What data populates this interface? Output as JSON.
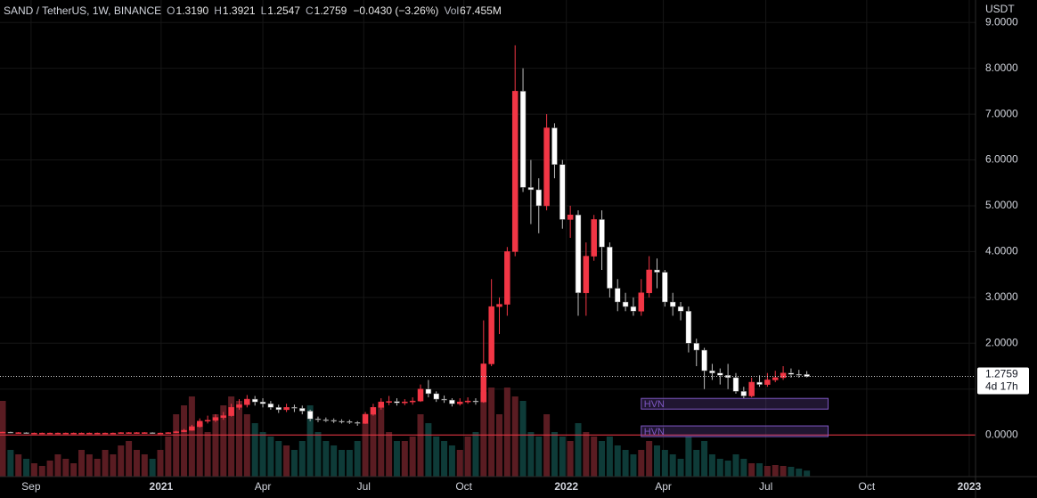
{
  "chart_data": {
    "type": "candlestick",
    "title": "SAND / TetherUS, 1W, BINANCE",
    "legend": [
      {
        "label": "O",
        "value": "1.3190"
      },
      {
        "label": "H",
        "value": "1.3921"
      },
      {
        "label": "L",
        "value": "1.2547"
      },
      {
        "label": "C",
        "value": "1.2759"
      }
    ],
    "change": "−0.0430 (−3.26%)",
    "volume_label": "Vol",
    "volume_value": "67.455M",
    "unit": "USDT",
    "countdown": "4d 17h",
    "up_color": "#f23645",
    "down_color": "#ffffff",
    "volume_up_color": "#5a1c22",
    "volume_down_color": "#0e3b38",
    "open": [
      0.06,
      0.06,
      0.05,
      0.05,
      0.04,
      0.04,
      0.04,
      0.04,
      0.04,
      0.04,
      0.04,
      0.04,
      0.04,
      0.04,
      0.04,
      0.04,
      0.05,
      0.05,
      0.05,
      0.05,
      0.04,
      0.04,
      0.05,
      0.07,
      0.1,
      0.18,
      0.3,
      0.32,
      0.38,
      0.42,
      0.6,
      0.66,
      0.78,
      0.72,
      0.68,
      0.6,
      0.55,
      0.6,
      0.58,
      0.52,
      0.35,
      0.33,
      0.32,
      0.3,
      0.29,
      0.27,
      0.25,
      0.45,
      0.6,
      0.72,
      0.73,
      0.7,
      0.72,
      0.74,
      1.0,
      0.9,
      0.78,
      0.76,
      0.68,
      0.72,
      0.74,
      0.72,
      1.55,
      2.8,
      2.85,
      4.0,
      7.5,
      5.4,
      5.35,
      5.0,
      6.7,
      5.9,
      4.7,
      4.8,
      3.1,
      3.9,
      4.7,
      4.1,
      3.2,
      2.9,
      2.8,
      2.7,
      3.1,
      3.6,
      3.55,
      2.9,
      2.8,
      2.7,
      2.0,
      1.85,
      1.4,
      1.35,
      1.3,
      1.25,
      0.95,
      0.85,
      1.15,
      1.1,
      1.2,
      1.25,
      1.35,
      1.32,
      1.319
    ],
    "high": [
      0.07,
      0.07,
      0.06,
      0.06,
      0.05,
      0.05,
      0.05,
      0.05,
      0.05,
      0.05,
      0.05,
      0.05,
      0.05,
      0.05,
      0.05,
      0.06,
      0.06,
      0.06,
      0.06,
      0.06,
      0.05,
      0.06,
      0.09,
      0.13,
      0.22,
      0.36,
      0.42,
      0.45,
      0.5,
      0.68,
      0.78,
      0.87,
      0.85,
      0.8,
      0.74,
      0.66,
      0.68,
      0.66,
      0.64,
      0.55,
      0.4,
      0.38,
      0.36,
      0.34,
      0.33,
      0.3,
      0.5,
      0.68,
      0.8,
      0.85,
      0.8,
      0.78,
      0.82,
      1.1,
      1.2,
      0.95,
      0.86,
      0.8,
      0.8,
      0.82,
      0.8,
      2.5,
      3.4,
      3.0,
      4.1,
      8.5,
      8.0,
      6.0,
      5.6,
      7.0,
      6.8,
      6.0,
      5.0,
      4.9,
      4.2,
      4.8,
      4.9,
      4.2,
      3.4,
      3.1,
      3.0,
      3.4,
      3.9,
      3.85,
      3.6,
      3.1,
      2.9,
      2.8,
      2.1,
      1.9,
      1.55,
      1.45,
      1.55,
      1.35,
      1.05,
      1.25,
      1.3,
      1.35,
      1.4,
      1.5,
      1.45,
      1.42,
      1.3921
    ],
    "low": [
      0.05,
      0.04,
      0.04,
      0.03,
      0.03,
      0.03,
      0.03,
      0.03,
      0.03,
      0.03,
      0.03,
      0.03,
      0.03,
      0.03,
      0.03,
      0.03,
      0.04,
      0.04,
      0.04,
      0.03,
      0.03,
      0.03,
      0.04,
      0.06,
      0.09,
      0.16,
      0.25,
      0.28,
      0.33,
      0.4,
      0.55,
      0.6,
      0.64,
      0.6,
      0.55,
      0.48,
      0.5,
      0.5,
      0.45,
      0.3,
      0.28,
      0.28,
      0.26,
      0.25,
      0.24,
      0.2,
      0.24,
      0.42,
      0.55,
      0.65,
      0.64,
      0.65,
      0.66,
      0.72,
      0.82,
      0.72,
      0.7,
      0.62,
      0.64,
      0.68,
      0.66,
      0.7,
      1.5,
      2.2,
      2.6,
      3.9,
      5.3,
      4.6,
      4.4,
      4.9,
      5.6,
      4.5,
      4.3,
      2.6,
      2.6,
      3.8,
      3.6,
      3.0,
      2.7,
      2.7,
      2.6,
      2.6,
      3.0,
      3.2,
      2.8,
      2.6,
      2.5,
      1.8,
      1.5,
      1.0,
      1.2,
      1.1,
      1.0,
      0.9,
      0.8,
      0.82,
      1.05,
      1.05,
      1.15,
      1.2,
      1.25,
      1.25,
      1.2547
    ],
    "close": [
      0.06,
      0.05,
      0.05,
      0.04,
      0.04,
      0.04,
      0.04,
      0.04,
      0.04,
      0.04,
      0.04,
      0.04,
      0.04,
      0.04,
      0.04,
      0.05,
      0.05,
      0.05,
      0.05,
      0.04,
      0.04,
      0.05,
      0.07,
      0.1,
      0.18,
      0.3,
      0.32,
      0.38,
      0.42,
      0.6,
      0.66,
      0.78,
      0.72,
      0.68,
      0.6,
      0.55,
      0.6,
      0.58,
      0.52,
      0.35,
      0.33,
      0.32,
      0.3,
      0.29,
      0.27,
      0.25,
      0.45,
      0.6,
      0.72,
      0.73,
      0.7,
      0.72,
      0.74,
      1.0,
      0.9,
      0.78,
      0.76,
      0.68,
      0.72,
      0.74,
      0.72,
      1.55,
      2.8,
      2.85,
      4.0,
      7.5,
      5.4,
      5.35,
      5.0,
      6.7,
      5.9,
      4.7,
      4.8,
      3.1,
      3.9,
      4.7,
      4.1,
      3.2,
      2.9,
      2.8,
      2.7,
      3.1,
      3.6,
      3.55,
      2.9,
      2.8,
      2.7,
      2.0,
      1.85,
      1.4,
      1.35,
      1.3,
      1.25,
      0.95,
      0.85,
      1.15,
      1.1,
      1.2,
      1.25,
      1.35,
      1.32,
      1.319,
      1.2759
    ],
    "volume": [
      850,
      300,
      250,
      200,
      150,
      120,
      180,
      250,
      200,
      150,
      300,
      250,
      200,
      300,
      250,
      350,
      400,
      300,
      250,
      200,
      300,
      450,
      700,
      800,
      900,
      600,
      500,
      700,
      800,
      900,
      850,
      700,
      600,
      500,
      450,
      400,
      350,
      300,
      400,
      800,
      500,
      400,
      350,
      300,
      300,
      400,
      600,
      700,
      800,
      500,
      400,
      400,
      450,
      700,
      600,
      450,
      400,
      350,
      300,
      450,
      500,
      950,
      1000,
      700,
      1000,
      900,
      850,
      500,
      450,
      700,
      500,
      450,
      400,
      600,
      500,
      450,
      400,
      450,
      350,
      300,
      250,
      300,
      400,
      350,
      300,
      250,
      200,
      450,
      300,
      400,
      250,
      200,
      180,
      250,
      200,
      150,
      150,
      120,
      130,
      120,
      110,
      90,
      67.455
    ],
    "volume_lim": [
      0,
      4000
    ],
    "ylim": [
      -0.91,
      9.49
    ],
    "yticks": [
      {
        "value": 0,
        "label": "0.0000"
      },
      {
        "value": 1,
        "label": "1.0000"
      },
      {
        "value": 2,
        "label": "2.0000"
      },
      {
        "value": 3,
        "label": "3.0000"
      },
      {
        "value": 4,
        "label": "4.0000"
      },
      {
        "value": 5,
        "label": "5.0000"
      },
      {
        "value": 6,
        "label": "6.0000"
      },
      {
        "value": 7,
        "label": "7.0000"
      },
      {
        "value": 8,
        "label": "8.0000"
      },
      {
        "value": 9,
        "label": "9.0000"
      }
    ],
    "xlim": [
      -0.34,
      123.4
    ],
    "xticks": [
      {
        "value": 3.6,
        "label": "Sep"
      },
      {
        "value": 20.1,
        "label": "2021"
      },
      {
        "value": 33,
        "label": "Apr"
      },
      {
        "value": 45.8,
        "label": "Jul"
      },
      {
        "value": 58.5,
        "label": "Oct"
      },
      {
        "value": 71.5,
        "label": "2022"
      },
      {
        "value": 83.8,
        "label": "Apr"
      },
      {
        "value": 96.8,
        "label": "Jul"
      },
      {
        "value": 109.6,
        "label": "Oct"
      },
      {
        "value": 122.6,
        "label": "2023"
      }
    ],
    "hline": 0,
    "hline_color": "#f23645",
    "zones": [
      {
        "label": "HVN",
        "y": 0.68,
        "x": [
          81,
          104.7
        ]
      },
      {
        "label": "HVN",
        "y": 0.08,
        "x": [
          81,
          104.7
        ]
      }
    ],
    "zone_color": "#7e57c2",
    "grid": true
  }
}
